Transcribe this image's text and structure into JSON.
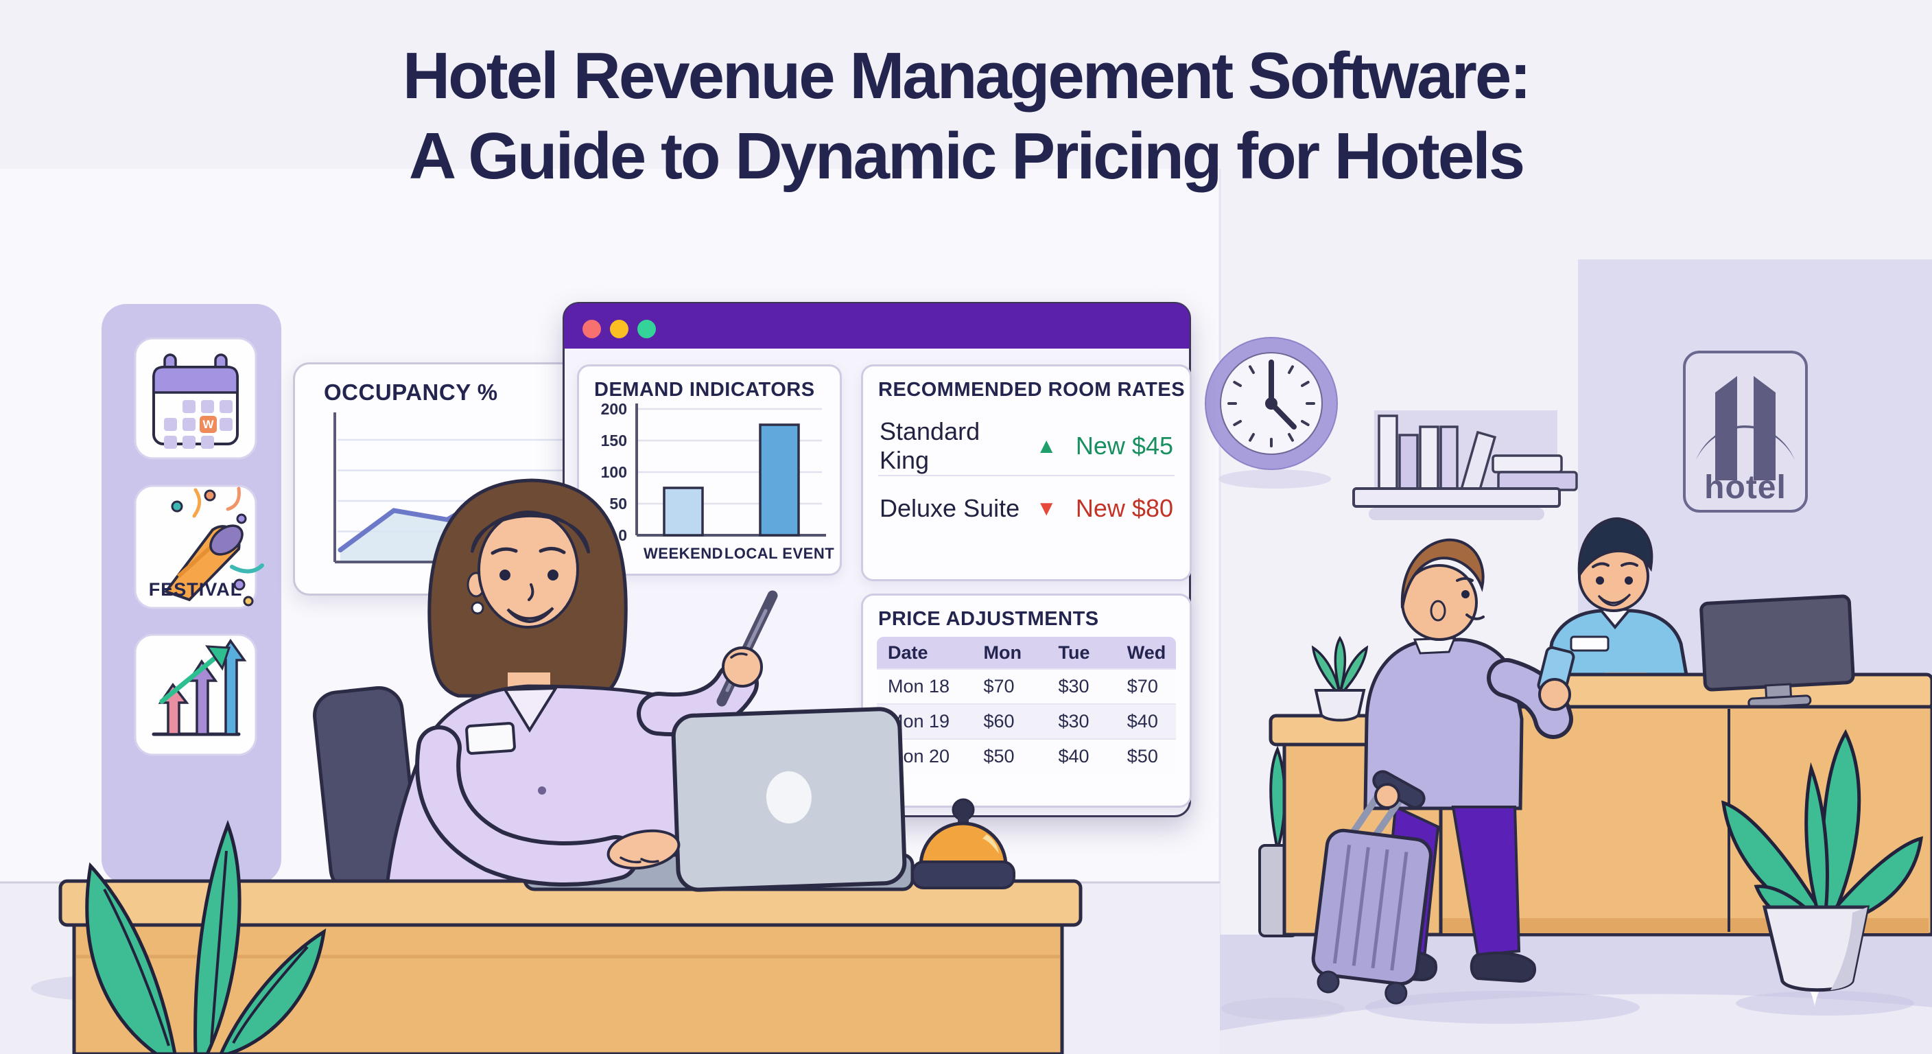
{
  "title": {
    "line1": "Hotel Revenue Management Software:",
    "line2": "A Guide to Dynamic Pricing for Hotels"
  },
  "sidebar": {
    "calendar_letter": "W",
    "festival_label": "FESTIVAL",
    "icons": [
      "calendar-weekend",
      "festival-party-popper",
      "growth-arrows"
    ]
  },
  "occupancy_card": {
    "title": "OCCUPANCY %"
  },
  "dashboard_window": {
    "traffic_lights": [
      "#F87171",
      "#FBBF24",
      "#34D399"
    ],
    "demand_card": {
      "title": "DEMAND INDICATORS"
    },
    "rates_card": {
      "title": "RECOMMENDED ROOM RATES",
      "rows": [
        {
          "room": "Standard King",
          "trend": "up",
          "trend_glyph": "▲",
          "price_label": "New $45"
        },
        {
          "room": "Deluxe Suite",
          "trend": "down",
          "trend_glyph": "▼",
          "price_label": "New $80"
        }
      ]
    },
    "price_card": {
      "title": "PRICE ADJUSTMENTS",
      "columns": [
        "Date",
        "Mon",
        "Tue",
        "Wed"
      ],
      "rows": [
        [
          "Mon 18",
          "$70",
          "$30",
          "$70"
        ],
        [
          "Mon 19",
          "$60",
          "$30",
          "$40"
        ],
        [
          "Mon 20",
          "$50",
          "$40",
          "$50"
        ]
      ]
    }
  },
  "hotel_sign": {
    "label": "hotel"
  },
  "chart_data": [
    {
      "type": "line",
      "title": "OCCUPANCY %",
      "x": [
        0,
        1,
        2,
        3,
        4,
        5,
        6,
        7
      ],
      "values_pct": [
        6,
        36,
        29,
        53,
        41,
        72,
        71,
        91
      ],
      "xlabel": "",
      "ylabel": "",
      "notes": "axes unlabeled; values estimated as % of plot height; rising zigzag with light blue area fill",
      "grid": true,
      "area_fill": true,
      "line_color": "#6C78C8"
    },
    {
      "type": "bar",
      "title": "DEMAND INDICATORS",
      "categories": [
        "WEEKEND",
        "LOCAL EVENT"
      ],
      "values": [
        75,
        175
      ],
      "ylim": [
        0,
        200
      ],
      "yticks": [
        200,
        150,
        100,
        50,
        0
      ],
      "grid": true,
      "bar_colors": [
        "#BDD9F2",
        "#5FA9DC"
      ]
    }
  ],
  "colors": {
    "title_navy": "#23254F",
    "accent_purple": "#5B21A8",
    "sidebar_lavender": "#CCC5EB",
    "panel_lavender": "#DDDBEF",
    "wood": "#F3C98E",
    "green_up": "#1FA06B",
    "red_down": "#E4493A",
    "leaf_green": "#3EBD95",
    "bell_gold": "#F2A43E"
  }
}
